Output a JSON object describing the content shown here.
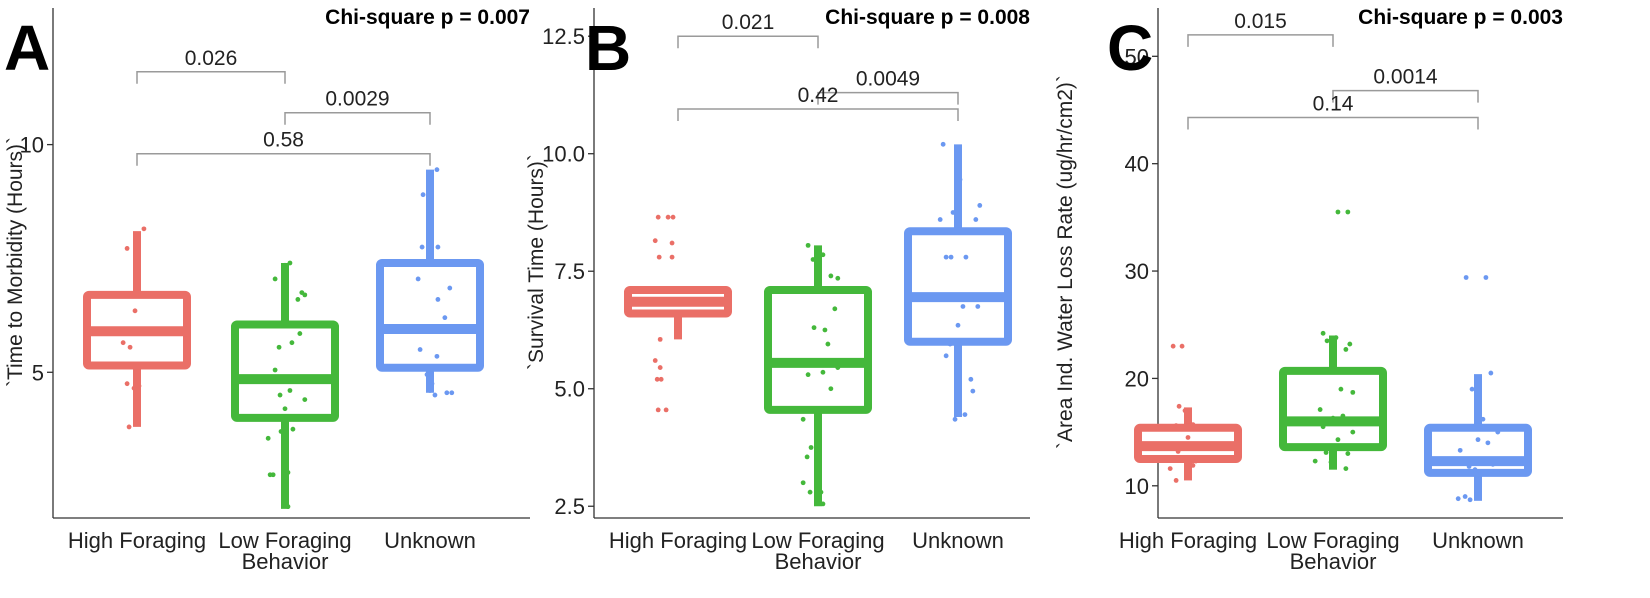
{
  "chart_data": [
    {
      "type": "boxplot",
      "panel_letter": "A",
      "annotation": "Chi-square p = 0.007",
      "ylabel": "`Time to Morbidity (Hours)`",
      "xlabel": "Behavior",
      "ylim": [
        1.8,
        13.0
      ],
      "yticks": [
        5,
        10
      ],
      "categories": [
        "High Foraging",
        "Low Foraging",
        "Unknown"
      ],
      "colors": [
        "#ea6f67",
        "#44b83b",
        "#6b98f1"
      ],
      "boxes": [
        {
          "min": 3.8,
          "q1": 5.15,
          "median": 5.9,
          "q3": 6.7,
          "max": 8.1
        },
        {
          "min": 2.0,
          "q1": 4.0,
          "median": 4.85,
          "q3": 6.05,
          "max": 7.4
        },
        {
          "min": 4.55,
          "q1": 5.1,
          "median": 5.95,
          "q3": 7.4,
          "max": 9.45
        }
      ],
      "points": [
        [
          [
            1.95,
            7.72
          ],
          [
            2.12,
            8.15
          ],
          [
            1.9,
            5.95
          ],
          [
            1.91,
            5.65
          ],
          [
            2.03,
            6.35
          ],
          [
            1.98,
            5.55
          ],
          [
            1.95,
            4.75
          ],
          [
            2.07,
            4.7
          ],
          [
            2.02,
            4.65
          ],
          [
            1.97,
            3.8
          ]
        ],
        [
          [
            1.95,
            7.05
          ],
          [
            2.05,
            7.35
          ],
          [
            2.1,
            7.4
          ],
          [
            2.22,
            6.75
          ],
          [
            2.25,
            6.7
          ],
          [
            2.18,
            6.6
          ],
          [
            1.99,
            5.55
          ],
          [
            2.12,
            5.65
          ],
          [
            2.2,
            5.85
          ],
          [
            1.95,
            5.05
          ],
          [
            2.15,
            4.8
          ],
          [
            2.0,
            4.5
          ],
          [
            2.1,
            4.6
          ],
          [
            2.25,
            4.4
          ],
          [
            2.05,
            4.2
          ],
          [
            2.13,
            3.75
          ],
          [
            2.01,
            3.7
          ],
          [
            1.88,
            3.55
          ],
          [
            1.9,
            2.75
          ],
          [
            1.93,
            2.75
          ],
          [
            2.08,
            2.8
          ],
          [
            2.05,
            3.05
          ],
          [
            2.08,
            2.05
          ]
        ],
        [
          [
            1.98,
            8.9
          ],
          [
            2.05,
            9.25
          ],
          [
            2.12,
            9.45
          ],
          [
            1.97,
            7.75
          ],
          [
            2.05,
            7.7
          ],
          [
            2.13,
            7.75
          ],
          [
            1.93,
            7.05
          ],
          [
            2.25,
            6.85
          ],
          [
            2.13,
            6.6
          ],
          [
            2.2,
            6.2
          ],
          [
            1.87,
            5.9
          ],
          [
            1.95,
            5.5
          ],
          [
            2.12,
            5.35
          ],
          [
            2.02,
            4.95
          ],
          [
            2.05,
            4.6
          ],
          [
            2.1,
            4.5
          ],
          [
            2.22,
            4.55
          ],
          [
            2.27,
            4.55
          ],
          [
            2.07,
            4.75
          ]
        ]
      ],
      "comparisons": [
        {
          "from": 0,
          "to": 1,
          "label": "0.026",
          "y": 11.6
        },
        {
          "from": 1,
          "to": 2,
          "label": "0.0029",
          "y": 10.7
        },
        {
          "from": 0,
          "to": 2,
          "label": "0.58",
          "y": 9.8
        }
      ]
    },
    {
      "type": "boxplot",
      "panel_letter": "B",
      "annotation": "Chi-square p = 0.008",
      "ylabel": "`Survival Time (Hours)`",
      "xlabel": "Behavior",
      "ylim": [
        2.25,
        13.1
      ],
      "yticks": [
        2.5,
        5.0,
        7.5,
        10.0,
        12.5
      ],
      "categories": [
        "High Foraging",
        "Low Foraging",
        "Unknown"
      ],
      "colors": [
        "#ea6f67",
        "#44b83b",
        "#6b98f1"
      ],
      "boxes": [
        {
          "min": 6.05,
          "q1": 6.6,
          "median": 6.85,
          "q3": 7.1,
          "max": 7.1
        },
        {
          "min": 2.5,
          "q1": 4.55,
          "median": 5.55,
          "q3": 7.1,
          "max": 8.05
        },
        {
          "min": 4.4,
          "q1": 6.0,
          "median": 6.95,
          "q3": 8.35,
          "max": 10.2
        }
      ],
      "points": [
        [
          [
            1.85,
            8.65
          ],
          [
            1.95,
            8.65
          ],
          [
            2.0,
            8.65
          ],
          [
            1.82,
            8.15
          ],
          [
            1.99,
            8.1
          ],
          [
            1.86,
            7.8
          ],
          [
            1.99,
            7.8
          ],
          [
            1.87,
            6.05
          ],
          [
            1.82,
            5.6
          ],
          [
            1.87,
            5.45
          ],
          [
            1.84,
            5.2
          ],
          [
            1.88,
            5.2
          ],
          [
            1.85,
            4.55
          ],
          [
            1.93,
            4.55
          ]
        ],
        [
          [
            1.95,
            8.05
          ],
          [
            2.0,
            7.75
          ],
          [
            2.1,
            7.85
          ],
          [
            2.18,
            7.4
          ],
          [
            2.25,
            7.35
          ],
          [
            2.22,
            6.7
          ],
          [
            2.01,
            6.3
          ],
          [
            2.12,
            6.25
          ],
          [
            2.15,
            5.95
          ],
          [
            2.25,
            5.45
          ],
          [
            1.95,
            5.3
          ],
          [
            2.1,
            5.35
          ],
          [
            2.18,
            5.0
          ],
          [
            2.02,
            4.55
          ],
          [
            1.9,
            4.35
          ],
          [
            1.98,
            3.75
          ],
          [
            2.05,
            3.7
          ],
          [
            1.94,
            3.55
          ],
          [
            1.9,
            3.0
          ],
          [
            2.05,
            3.05
          ],
          [
            1.97,
            2.8
          ],
          [
            2.08,
            2.8
          ],
          [
            2.1,
            2.55
          ]
        ],
        [
          [
            1.9,
            10.2
          ],
          [
            2.07,
            9.45
          ],
          [
            2.27,
            8.9
          ],
          [
            2.23,
            8.6
          ],
          [
            1.87,
            8.6
          ],
          [
            2.0,
            8.75
          ],
          [
            1.93,
            7.8
          ],
          [
            1.98,
            7.8
          ],
          [
            2.13,
            7.8
          ],
          [
            2.18,
            6.9
          ],
          [
            2.1,
            6.75
          ],
          [
            2.25,
            6.75
          ],
          [
            2.05,
            6.35
          ],
          [
            1.97,
            5.95
          ],
          [
            1.93,
            5.7
          ],
          [
            2.18,
            5.2
          ],
          [
            2.2,
            4.95
          ],
          [
            2.12,
            4.45
          ],
          [
            2.02,
            4.35
          ]
        ]
      ],
      "comparisons": [
        {
          "from": 0,
          "to": 1,
          "label": "0.021",
          "y": 12.5
        },
        {
          "from": 1,
          "to": 2,
          "label": "0.0049",
          "y": 11.3
        },
        {
          "from": 0,
          "to": 2,
          "label": "0.42",
          "y": 10.95
        }
      ]
    },
    {
      "type": "boxplot",
      "panel_letter": "C",
      "annotation": "Chi-square p = 0.003",
      "ylabel": "`Area Ind. Water Loss Rate (ug/hr/cm2)`",
      "xlabel": "Behavior",
      "ylim": [
        7.0,
        54.5
      ],
      "yticks": [
        10,
        20,
        30,
        40,
        50
      ],
      "categories": [
        "High Foraging",
        "Low Foraging",
        "Unknown"
      ],
      "colors": [
        "#ea6f67",
        "#44b83b",
        "#6b98f1"
      ],
      "boxes": [
        {
          "min": 10.5,
          "q1": 12.5,
          "median": 13.7,
          "q3": 15.4,
          "max": 17.3
        },
        {
          "min": 11.5,
          "q1": 13.6,
          "median": 16.0,
          "q3": 20.7,
          "max": 24.0
        },
        {
          "min": 8.6,
          "q1": 11.2,
          "median": 12.3,
          "q3": 15.4,
          "max": 20.4
        }
      ],
      "points": [
        [
          [
            1.9,
            23.0
          ],
          [
            1.99,
            23.0
          ],
          [
            1.96,
            17.4
          ],
          [
            2.02,
            17.0
          ],
          [
            2.04,
            16.2
          ],
          [
            1.93,
            15.6
          ],
          [
            2.1,
            15.7
          ],
          [
            2.05,
            14.5
          ],
          [
            1.95,
            13.2
          ],
          [
            2.13,
            12.3
          ],
          [
            2.1,
            11.9
          ],
          [
            1.87,
            11.6
          ],
          [
            1.93,
            10.5
          ]
        ],
        [
          [
            2.1,
            35.5
          ],
          [
            2.2,
            35.5
          ],
          [
            1.95,
            24.2
          ],
          [
            2.08,
            23.8
          ],
          [
            2.22,
            23.2
          ],
          [
            1.99,
            23.5
          ],
          [
            2.18,
            22.7
          ],
          [
            2.13,
            19.0
          ],
          [
            2.25,
            18.7
          ],
          [
            1.92,
            17.1
          ],
          [
            2.05,
            16.3
          ],
          [
            2.15,
            16.5
          ],
          [
            1.95,
            15.5
          ],
          [
            2.25,
            15.0
          ],
          [
            2.1,
            14.3
          ],
          [
            1.98,
            13.1
          ],
          [
            2.2,
            13.0
          ],
          [
            1.87,
            12.3
          ],
          [
            2.03,
            12.2
          ],
          [
            2.18,
            11.6
          ]
        ],
        [
          [
            1.93,
            29.4
          ],
          [
            2.13,
            29.4
          ],
          [
            2.18,
            20.5
          ],
          [
            1.99,
            19.0
          ],
          [
            2.1,
            16.2
          ],
          [
            2.25,
            15.0
          ],
          [
            2.05,
            14.3
          ],
          [
            2.15,
            14.0
          ],
          [
            1.87,
            13.3
          ],
          [
            2.1,
            12.4
          ],
          [
            2.2,
            12.0
          ],
          [
            1.96,
            11.8
          ],
          [
            2.02,
            11.5
          ],
          [
            2.25,
            11.2
          ],
          [
            1.92,
            9.0
          ],
          [
            1.97,
            8.7
          ],
          [
            1.85,
            8.8
          ]
        ]
      ],
      "comparisons": [
        {
          "from": 0,
          "to": 1,
          "label": "0.015",
          "y": 52.0
        },
        {
          "from": 1,
          "to": 2,
          "label": "0.0014",
          "y": 46.8
        },
        {
          "from": 0,
          "to": 2,
          "label": "0.14",
          "y": 44.3
        }
      ]
    }
  ]
}
